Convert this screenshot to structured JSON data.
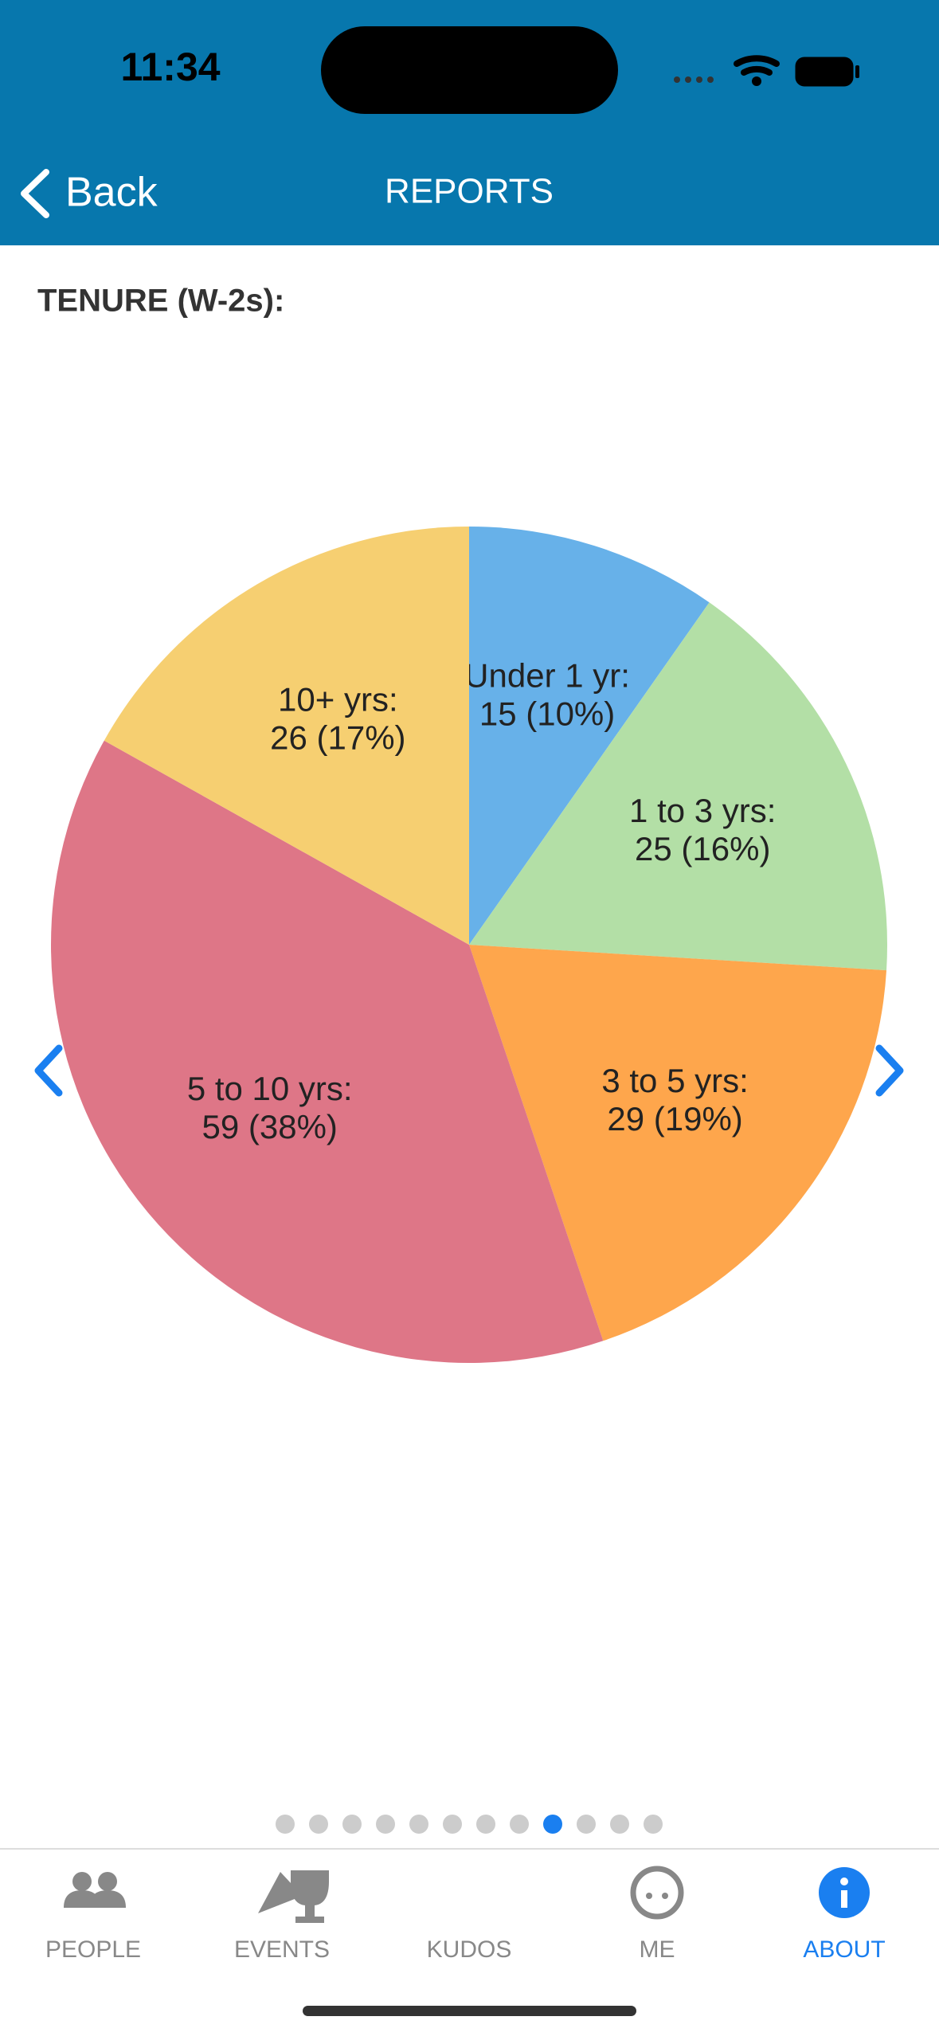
{
  "status_bar": {
    "time": "11:34"
  },
  "nav_bar": {
    "back": "Back",
    "title": "REPORTS"
  },
  "section_title": "TENURE (W-2s):",
  "chart_data": {
    "type": "pie",
    "categories": [
      "Under 1 yr:",
      "1 to 3 yrs:",
      "3 to 5 yrs:",
      "5 to 10 yrs:",
      "10+ yrs:"
    ],
    "values": [
      15,
      25,
      29,
      59,
      26
    ],
    "value_labels": [
      "15 (10%)",
      "25 (16%)",
      "29 (19%)",
      "59 (38%)",
      "26 (17%)"
    ],
    "colors": [
      "#67b1e9",
      "#b3dfa6",
      "#fea64c",
      "#de7687",
      "#f6cf71"
    ]
  },
  "pager": {
    "pages": 12,
    "current": 9
  },
  "tab_bar": {
    "tabs": [
      "PEOPLE",
      "EVENTS",
      "KUDOS",
      "ME",
      "ABOUT"
    ],
    "active": 5
  }
}
